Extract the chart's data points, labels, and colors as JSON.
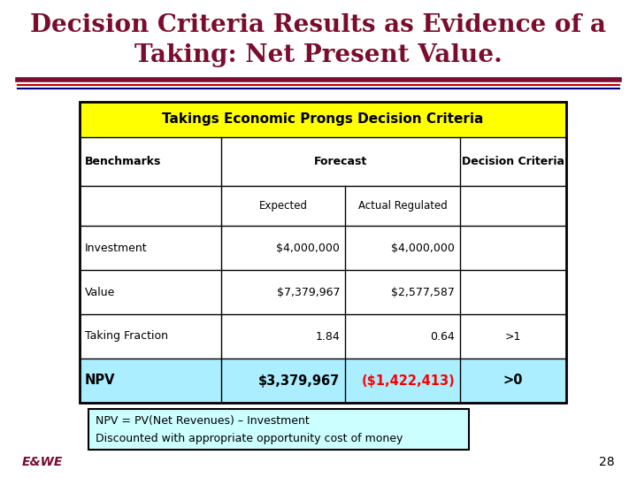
{
  "title_line1": "Decision Criteria Results as Evidence of a",
  "title_line2": "Taking: Net Present Value.",
  "title_color": "#7B0C2E",
  "title_fontsize": 20,
  "table_header": "Takings Economic Prongs Decision Criteria",
  "table_header_bg": "#FFFF00",
  "table_header_color": "#000000",
  "npv_row_bg": "#AAEEFF",
  "npv_col1_color": "#000000",
  "npv_col2_color": "#000000",
  "npv_col3_color": "#FF0000",
  "npv_col4_color": "#000000",
  "note_line1": "NPV = PV(Net Revenues) – Investment",
  "note_line2": "Discounted with appropriate opportunity cost of money",
  "note_bg": "#CCFFFF",
  "footer_text": "E&WE",
  "footer_color": "#7B0C2E",
  "page_number": "28",
  "bg_color": "#FFFFFF",
  "sep_color1": "#7B0C2E",
  "sep_color2": "#C00000",
  "sep_color3": "#000080"
}
